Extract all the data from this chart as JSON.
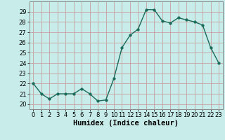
{
  "x": [
    0,
    1,
    2,
    3,
    4,
    5,
    6,
    7,
    8,
    9,
    10,
    11,
    12,
    13,
    14,
    15,
    16,
    17,
    18,
    19,
    20,
    21,
    22,
    23
  ],
  "y": [
    22,
    21,
    20.5,
    21,
    21,
    21,
    21.5,
    21,
    20.3,
    20.4,
    22.5,
    25.5,
    26.7,
    27.3,
    29.2,
    29.2,
    28.1,
    27.9,
    28.4,
    28.2,
    28.0,
    27.7,
    25.5,
    24.0
  ],
  "line_color": "#1a6b5a",
  "marker_color": "#1a6b5a",
  "bg_color": "#c8ecea",
  "grid_color_major": "#c8a0a0",
  "xlabel": "Humidex (Indice chaleur)",
  "ylim": [
    19.5,
    30.0
  ],
  "xlim": [
    -0.5,
    23.5
  ],
  "yticks": [
    20,
    21,
    22,
    23,
    24,
    25,
    26,
    27,
    28,
    29
  ],
  "xticks": [
    0,
    1,
    2,
    3,
    4,
    5,
    6,
    7,
    8,
    9,
    10,
    11,
    12,
    13,
    14,
    15,
    16,
    17,
    18,
    19,
    20,
    21,
    22,
    23
  ],
  "tick_labelsize": 6,
  "xlabel_fontsize": 7.5,
  "linewidth": 1.0,
  "markersize": 2.5,
  "spine_color": "#888888"
}
